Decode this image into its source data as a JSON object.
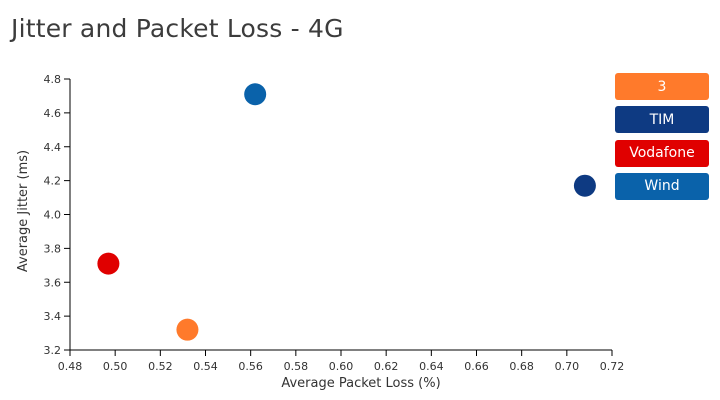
{
  "title": "Jitter and Packet Loss - 4G",
  "chart_data": {
    "type": "scatter",
    "title": "Jitter and Packet Loss - 4G",
    "xlabel": "Average Packet Loss (%)",
    "ylabel": "Average Jitter (ms)",
    "xlim": [
      0.48,
      0.72
    ],
    "ylim": [
      3.2,
      4.8
    ],
    "xticks": [
      "0.48",
      "0.50",
      "0.52",
      "0.54",
      "0.56",
      "0.58",
      "0.60",
      "0.62",
      "0.64",
      "0.66",
      "0.68",
      "0.70",
      "0.72"
    ],
    "yticks": [
      "3.2",
      "3.4",
      "3.6",
      "3.8",
      "4.0",
      "4.2",
      "4.4",
      "4.6",
      "4.8"
    ],
    "grid": false,
    "legend_position": "right",
    "series": [
      {
        "name": "3",
        "color": "#ff7a2b",
        "x": 0.532,
        "y": 3.32
      },
      {
        "name": "TIM",
        "color": "#0e3a82",
        "x": 0.708,
        "y": 4.17
      },
      {
        "name": "Vodafone",
        "color": "#e00000",
        "x": 0.497,
        "y": 3.71
      },
      {
        "name": "Wind",
        "color": "#0a62aa",
        "x": 0.562,
        "y": 4.71
      }
    ]
  }
}
